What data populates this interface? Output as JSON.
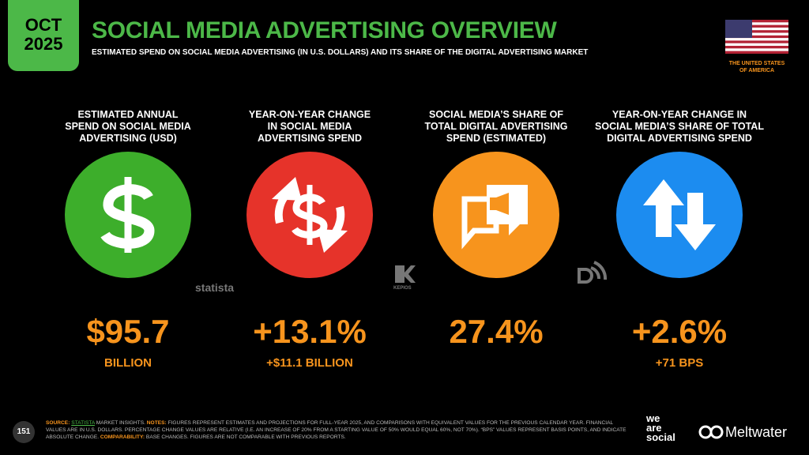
{
  "header": {
    "month": "OCT",
    "year": "2025",
    "title": "SOCIAL MEDIA ADVERTISING OVERVIEW",
    "subtitle": "ESTIMATED SPEND ON SOCIAL MEDIA ADVERTISING (IN U.S. DOLLARS) AND ITS SHARE OF THE DIGITAL ADVERTISING MARKET",
    "country_lines": [
      "THE UNITED STATES",
      "OF AMERICA"
    ]
  },
  "kpis": [
    {
      "label_lines": [
        "ESTIMATED ANNUAL",
        "SPEND ON SOCIAL MEDIA",
        "ADVERTISING (USD)"
      ],
      "value": "$95.7",
      "sub": "BILLION"
    },
    {
      "label_lines": [
        "YEAR-ON-YEAR CHANGE",
        "IN SOCIAL MEDIA",
        "ADVERTISING SPEND"
      ],
      "value": "+13.1%",
      "sub": "+$11.1 BILLION"
    },
    {
      "label_lines": [
        "SOCIAL MEDIA’S SHARE OF",
        "TOTAL DIGITAL ADVERTISING",
        "SPEND (ESTIMATED)"
      ],
      "value": "27.4%",
      "sub": ""
    },
    {
      "label_lines": [
        "YEAR-ON-YEAR CHANGE IN",
        "SOCIAL MEDIA’S SHARE OF TOTAL",
        "DIGITAL ADVERTISING SPEND"
      ],
      "value": "+2.6%",
      "sub": "+71 BPS"
    }
  ],
  "logos": {
    "statista": "statista",
    "kepios": "KEPIOS",
    "we_are_social": [
      "we",
      "are",
      "social"
    ],
    "meltwater": "Meltwater"
  },
  "footer": {
    "page": "151",
    "source_label": "SOURCE:",
    "source_link": "STATISTA",
    "source_text": "MARKET INSIGHTS.",
    "notes_label": "NOTES:",
    "notes_text": "FIGURES REPRESENT ESTIMATES AND PROJECTIONS FOR FULL-YEAR 2025, AND COMPARISONS WITH EQUIVALENT VALUES FOR THE PREVIOUS CALENDAR YEAR. FINANCIAL VALUES ARE IN U.S. DOLLARS. PERCENTAGE CHANGE VALUES ARE RELATIVE (I.E. AN INCREASE OF 20% FROM A STARTING VALUE OF 50% WOULD EQUAL 60%, NOT 70%). “BPS” VALUES REPRESENT BASIS POINTS, AND INDICATE ABSOLUTE CHANGE.",
    "comparability_label": "COMPARABILITY:",
    "comparability_text": "BASE CHANGES. FIGURES ARE NOT COMPARABLE WITH PREVIOUS REPORTS."
  }
}
